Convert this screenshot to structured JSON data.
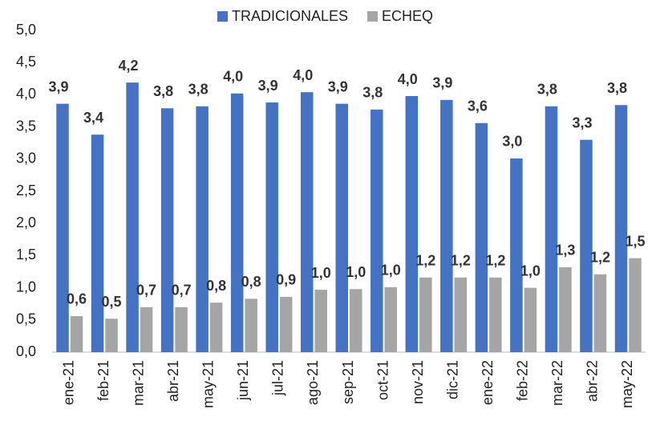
{
  "chart_data": {
    "type": "bar",
    "categories": [
      "ene-21",
      "feb-21",
      "mar-21",
      "abr-21",
      "may-21",
      "jun-21",
      "jul-21",
      "ago-21",
      "sep-21",
      "oct-21",
      "nov-21",
      "dic-21",
      "ene-22",
      "feb-22",
      "mar-22",
      "abr-22",
      "may-22"
    ],
    "series": [
      {
        "name": "TRADICIONALES",
        "color": "#4472c4",
        "values": [
          3.86,
          3.38,
          4.19,
          3.79,
          3.82,
          4.02,
          3.88,
          4.04,
          3.86,
          3.77,
          3.98,
          3.92,
          3.56,
          3.01,
          3.82,
          3.3,
          3.84
        ],
        "value_labels": [
          "3,9",
          "3,4",
          "4,2",
          "3,8",
          "3,8",
          "4,0",
          "3,9",
          "4,0",
          "3,9",
          "3,8",
          "4,0",
          "3,9",
          "3,6",
          "3,0",
          "3,8",
          "3,3",
          "3,8"
        ]
      },
      {
        "name": "ECHEQ",
        "color": "#a5a5a5",
        "values": [
          0.56,
          0.52,
          0.7,
          0.7,
          0.77,
          0.83,
          0.86,
          0.97,
          0.98,
          1.01,
          1.16,
          1.16,
          1.16,
          1.0,
          1.32,
          1.21,
          1.46
        ],
        "value_labels": [
          "0,6",
          "0,5",
          "0,7",
          "0,7",
          "0,8",
          "0,8",
          "0,9",
          "1,0",
          "1,0",
          "1,0",
          "1,2",
          "1,2",
          "1,2",
          "1,0",
          "1,3",
          "1,2",
          "1,5"
        ]
      }
    ],
    "ylim": [
      0,
      5
    ],
    "yticks": [
      {
        "value": 0,
        "label": "0,0"
      },
      {
        "value": 0.5,
        "label": "0,5"
      },
      {
        "value": 1,
        "label": "1,0"
      },
      {
        "value": 1.5,
        "label": "1,5"
      },
      {
        "value": 2,
        "label": "2,0"
      },
      {
        "value": 2.5,
        "label": "2,5"
      },
      {
        "value": 3,
        "label": "3,0"
      },
      {
        "value": 3.5,
        "label": "3,5"
      },
      {
        "value": 4,
        "label": "4,0"
      },
      {
        "value": 4.5,
        "label": "4,5"
      },
      {
        "value": 5,
        "label": "5,0"
      }
    ],
    "grid": false,
    "legend": "top"
  }
}
